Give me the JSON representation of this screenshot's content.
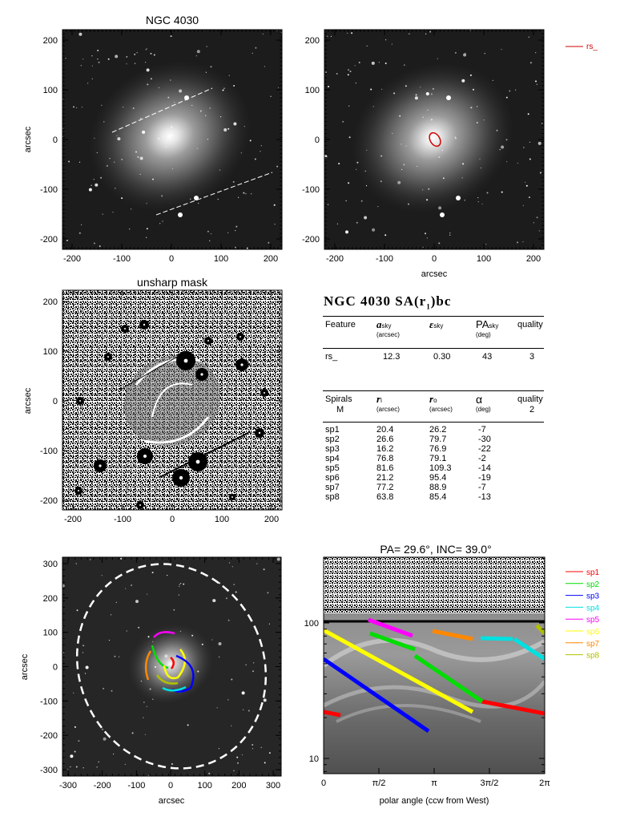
{
  "panels": {
    "image": {
      "title": "NGC 4030",
      "ylabel": "arcsec",
      "xticks": [
        "-200",
        "-100",
        "0",
        "100",
        "200"
      ],
      "yticks": [
        "200",
        "100",
        "0",
        "-100",
        "-200"
      ]
    },
    "fit": {
      "xlabel": "arcsec",
      "xticks": [
        "-200",
        "-100",
        "0",
        "100",
        "200"
      ],
      "yticks": [
        "200",
        "100",
        "0",
        "-100",
        "-200"
      ],
      "ellipse_color": "#d00000"
    },
    "unsharp": {
      "title": "unsharp mask",
      "ylabel": "arcsec",
      "xticks": [
        "-200",
        "-100",
        "0",
        "100",
        "200"
      ],
      "yticks": [
        "200",
        "100",
        "0",
        "-100",
        "-200"
      ]
    },
    "spirals": {
      "xlabel": "arcsec",
      "ylabel": "arcsec",
      "xticks": [
        "-300",
        "-200",
        "-100",
        "0",
        "100",
        "200",
        "300"
      ],
      "yticks": [
        "300",
        "200",
        "100",
        "0",
        "-100",
        "-200",
        "-300"
      ]
    },
    "polar": {
      "title": "PA= 29.6°, INC= 39.0°",
      "xlabel": "polar angle (ccw from West)",
      "xticks": [
        "0",
        "π/2",
        "π",
        "3π/2",
        "2π"
      ],
      "yticks": [
        "100",
        "10"
      ]
    }
  },
  "legend_top": [
    {
      "name": "rs_",
      "color": "#d00000"
    }
  ],
  "legend_bottom": [
    {
      "name": "sp1",
      "color": "#ff0000"
    },
    {
      "name": "sp2",
      "color": "#00dd00"
    },
    {
      "name": "sp3",
      "color": "#0000ff"
    },
    {
      "name": "sp4",
      "color": "#00e0e0"
    },
    {
      "name": "sp5",
      "color": "#ff00ff"
    },
    {
      "name": "sp6",
      "color": "#ffff00"
    },
    {
      "name": "sp7",
      "color": "#ff8800"
    },
    {
      "name": "sp8",
      "color": "#b0c000"
    }
  ],
  "info": {
    "galaxy_title": "NGC 4030  SA(r",
    "galaxy_title_sub": "1",
    "galaxy_title_end": ")bc",
    "ring_headers": {
      "feature": "Feature",
      "a": "a",
      "a_sub": "sky",
      "a_unit": "(arcsec)",
      "e": "ε",
      "e_sub": "sky",
      "pa": "PA",
      "pa_sub": "sky",
      "pa_unit": "(deg)",
      "quality": "quality"
    },
    "ring_rows": [
      {
        "name": "rs_",
        "a": "12.3",
        "e": "0.30",
        "pa": "43",
        "q": "3"
      }
    ],
    "spiral_headers": {
      "spirals": "Spirals",
      "m": "M",
      "ri": "r",
      "ri_sub": "i",
      "ri_unit": "(arcsec)",
      "ro": "r",
      "ro_sub": "o",
      "ro_unit": "(arcsec)",
      "alpha": "α",
      "alpha_unit": "(deg)",
      "quality": "quality",
      "quality_val": "2"
    },
    "spiral_rows": [
      {
        "name": "sp1",
        "ri": "20.4",
        "ro": "26.2",
        "alpha": "-7"
      },
      {
        "name": "sp2",
        "ri": "26.6",
        "ro": "79.7",
        "alpha": "-30"
      },
      {
        "name": "sp3",
        "ri": "16.2",
        "ro": "76.9",
        "alpha": "-22"
      },
      {
        "name": "sp4",
        "ri": "76.8",
        "ro": "79.1",
        "alpha": "-2"
      },
      {
        "name": "sp5",
        "ri": "81.6",
        "ro": "109.3",
        "alpha": "-14"
      },
      {
        "name": "sp6",
        "ri": "21.2",
        "ro": "95.4",
        "alpha": "-19"
      },
      {
        "name": "sp7",
        "ri": "77.2",
        "ro": "88.9",
        "alpha": "-7"
      },
      {
        "name": "sp8",
        "ri": "63.8",
        "ro": "85.4",
        "alpha": "-13"
      }
    ]
  }
}
